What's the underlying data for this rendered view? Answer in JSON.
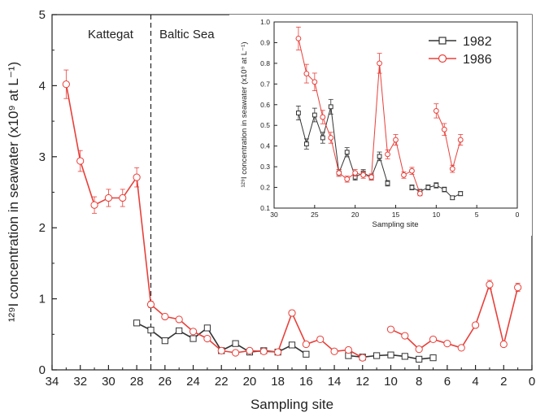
{
  "colors": {
    "series_1982": "#333333",
    "series_1986": "#e8403a"
  },
  "regions": {
    "left": "Kattegat",
    "right": "Baltic Sea"
  },
  "chart_data": [
    {
      "type": "line",
      "xlabel": "Sampling site",
      "ylabel": "¹²⁹I concentration in seawater (x10⁹ at L⁻¹)",
      "xlim": [
        34,
        0
      ],
      "ylim": [
        0,
        5
      ],
      "xticks": [
        34,
        32,
        30,
        28,
        26,
        24,
        22,
        20,
        18,
        16,
        14,
        12,
        10,
        8,
        6,
        4,
        2,
        0
      ],
      "yticks": [
        0,
        1,
        2,
        3,
        4,
        5
      ],
      "divider_x": 27,
      "series": [
        {
          "name": "1982",
          "marker": "square",
          "segments": [
            [
              [
                28,
                0.66
              ],
              [
                27,
                0.56
              ],
              [
                26,
                0.41
              ],
              [
                25,
                0.55
              ],
              [
                24,
                0.44
              ],
              [
                23,
                0.59
              ],
              [
                22,
                0.27
              ],
              [
                21,
                0.37
              ],
              [
                20,
                0.25
              ],
              [
                19,
                0.27
              ],
              [
                18,
                0.25
              ],
              [
                17,
                0.35
              ],
              [
                16,
                0.22
              ]
            ],
            [
              [
                13,
                0.2
              ],
              [
                12,
                0.18
              ],
              [
                11,
                0.2
              ],
              [
                10,
                0.21
              ],
              [
                9,
                0.19
              ],
              [
                8,
                0.15
              ],
              [
                7,
                0.17
              ]
            ]
          ]
        },
        {
          "name": "1986",
          "marker": "circle",
          "segments": [
            [
              [
                33,
                4.02
              ],
              [
                32,
                2.94
              ],
              [
                31,
                2.32
              ],
              [
                30,
                2.42
              ],
              [
                29,
                2.42
              ],
              [
                28,
                2.71
              ],
              [
                27,
                0.92
              ],
              [
                26,
                0.75
              ],
              [
                25,
                0.71
              ],
              [
                24,
                0.54
              ],
              [
                23,
                0.44
              ],
              [
                22,
                0.27
              ],
              [
                21,
                0.24
              ],
              [
                20,
                0.27
              ],
              [
                19,
                0.26
              ],
              [
                18,
                0.25
              ],
              [
                17,
                0.8
              ],
              [
                16,
                0.36
              ],
              [
                15,
                0.43
              ],
              [
                14,
                0.26
              ],
              [
                13,
                0.28
              ],
              [
                12,
                0.17
              ]
            ],
            [
              [
                10,
                0.57
              ],
              [
                9,
                0.48
              ],
              [
                8,
                0.29
              ],
              [
                7,
                0.43
              ],
              [
                6,
                0.37
              ],
              [
                5,
                0.31
              ],
              [
                4,
                0.63
              ],
              [
                3,
                1.2
              ],
              [
                2,
                0.36
              ],
              [
                1,
                1.16
              ]
            ]
          ]
        }
      ]
    },
    {
      "type": "line",
      "xlabel": "Sampling site",
      "ylabel": "¹²⁹I concentration in seawater (x10⁹ at L⁻¹)",
      "xlim": [
        30,
        0
      ],
      "ylim": [
        0.1,
        1.0
      ],
      "xticks": [
        30,
        25,
        20,
        15,
        10,
        5,
        0
      ],
      "yticks": [
        0.1,
        0.2,
        0.3,
        0.4,
        0.5,
        0.6,
        0.7,
        0.8,
        0.9,
        1.0
      ],
      "legend": "top-right",
      "series": [
        {
          "name": "1982",
          "marker": "square",
          "segments": [
            [
              [
                27,
                0.56
              ],
              [
                26,
                0.41
              ],
              [
                25,
                0.55
              ],
              [
                24,
                0.44
              ],
              [
                23,
                0.59
              ],
              [
                22,
                0.27
              ],
              [
                21,
                0.37
              ],
              [
                20,
                0.25
              ],
              [
                19,
                0.27
              ],
              [
                18,
                0.25
              ],
              [
                17,
                0.35
              ],
              [
                16,
                0.22
              ]
            ],
            [
              [
                13,
                0.2
              ],
              [
                12,
                0.18
              ],
              [
                11,
                0.2
              ],
              [
                10,
                0.21
              ],
              [
                9,
                0.19
              ],
              [
                8,
                0.15
              ],
              [
                7,
                0.17
              ]
            ]
          ]
        },
        {
          "name": "1986",
          "marker": "circle",
          "segments": [
            [
              [
                27,
                0.92
              ],
              [
                26,
                0.75
              ],
              [
                25,
                0.71
              ],
              [
                24,
                0.54
              ],
              [
                23,
                0.44
              ],
              [
                22,
                0.27
              ],
              [
                21,
                0.24
              ],
              [
                20,
                0.27
              ],
              [
                19,
                0.26
              ],
              [
                18,
                0.25
              ],
              [
                17,
                0.8
              ],
              [
                16,
                0.36
              ],
              [
                15,
                0.43
              ],
              [
                14,
                0.26
              ],
              [
                13,
                0.28
              ],
              [
                12,
                0.17
              ]
            ],
            [
              [
                10,
                0.57
              ],
              [
                9,
                0.48
              ],
              [
                8,
                0.29
              ],
              [
                7,
                0.43
              ]
            ]
          ]
        }
      ]
    }
  ]
}
